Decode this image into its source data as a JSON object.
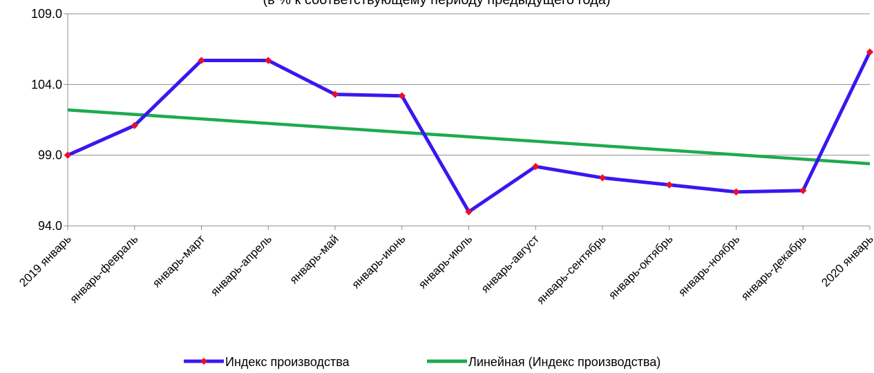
{
  "chart_data": {
    "type": "line",
    "subtitle": "(в % к соответствующему периоду предыдущего года)",
    "categories": [
      "2019 январь",
      "январь-февраль",
      "январь-март",
      "январь-апрель",
      "январь-май",
      "январь-июнь",
      "январь-июль",
      "январь-август",
      "январь-сентябрь",
      "январь-октябрь",
      "январь-ноябрь",
      "январь-декабрь",
      "2020 январь"
    ],
    "series": [
      {
        "name": "Индекс производства",
        "values": [
          99.0,
          101.1,
          105.7,
          105.7,
          103.3,
          103.2,
          95.0,
          98.2,
          97.4,
          96.9,
          96.4,
          96.5,
          106.3
        ],
        "color": "#3a17f0",
        "marker_color": "#e8102a"
      },
      {
        "name": "Линейная (Индекс производства)",
        "trend_start": 102.2,
        "trend_end": 98.4,
        "color": "#1eaa4f"
      }
    ],
    "y_ticks": [
      "94.0",
      "99.0",
      "104.0",
      "109.0"
    ],
    "ylim": [
      94.0,
      109.0
    ],
    "grid": true,
    "legend_position": "bottom"
  }
}
